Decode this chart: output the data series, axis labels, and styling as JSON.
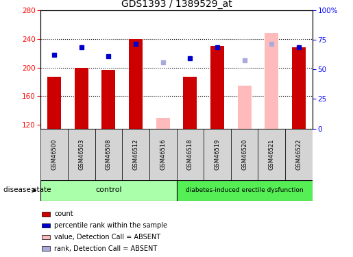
{
  "title": "GDS1393 / 1389529_at",
  "samples": [
    "GSM46500",
    "GSM46503",
    "GSM46508",
    "GSM46512",
    "GSM46516",
    "GSM46518",
    "GSM46519",
    "GSM46520",
    "GSM46521",
    "GSM46522"
  ],
  "count_values": [
    187,
    200,
    197,
    240,
    null,
    187,
    230,
    null,
    null,
    228
  ],
  "count_absent": [
    null,
    null,
    null,
    null,
    130,
    null,
    null,
    175,
    248,
    null
  ],
  "rank_values": [
    218,
    228,
    216,
    233,
    null,
    213,
    228,
    null,
    null,
    228
  ],
  "rank_absent": [
    null,
    null,
    null,
    null,
    207,
    null,
    null,
    210,
    233,
    null
  ],
  "ylim_left": [
    115,
    280
  ],
  "ylim_right": [
    0,
    100
  ],
  "yticks_left": [
    120,
    160,
    200,
    240,
    280
  ],
  "yticks_right": [
    0,
    25,
    50,
    75,
    100
  ],
  "yticklabels_right": [
    "0",
    "25",
    "50",
    "75",
    "100%"
  ],
  "count_color": "#cc0000",
  "count_absent_color": "#ffbbbb",
  "rank_color": "#0000cc",
  "rank_absent_color": "#aaaadd",
  "control_group": [
    0,
    1,
    2,
    3,
    4
  ],
  "disease_group": [
    5,
    6,
    7,
    8,
    9
  ],
  "control_label": "control",
  "disease_label": "diabetes-induced erectile dysfunction",
  "control_color": "#aaffaa",
  "disease_color": "#55ee55",
  "xlabel_label": "disease state",
  "legend_items": [
    "count",
    "percentile rank within the sample",
    "value, Detection Call = ABSENT",
    "rank, Detection Call = ABSENT"
  ],
  "legend_colors": [
    "#cc0000",
    "#0000cc",
    "#ffbbbb",
    "#aaaadd"
  ],
  "grid_lines": [
    160,
    200,
    240
  ],
  "bar_width": 0.5
}
